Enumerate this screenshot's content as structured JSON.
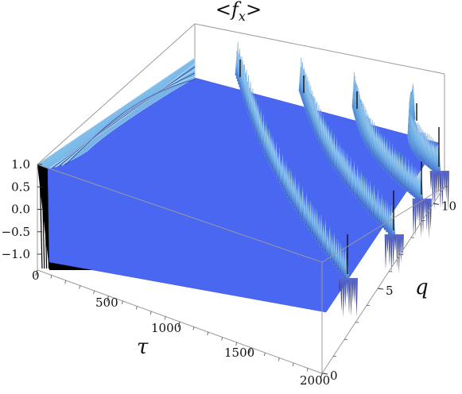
{
  "chart_data": {
    "type": "surface3d",
    "title": "<f_x>",
    "title_parts": {
      "open": "<",
      "var": "f",
      "sub": "x",
      "close": ">"
    },
    "xlabel": "τ",
    "ylabel": "q",
    "zlabel": "",
    "xlim": [
      0,
      2000
    ],
    "ylim": [
      0,
      11
    ],
    "zlim": [
      -1.0,
      1.0
    ],
    "x_ticks": [
      "0",
      "500",
      "1000",
      "1500",
      "2000"
    ],
    "y_ticks": [
      "0",
      "5",
      "10"
    ],
    "z_ticks": [
      "1.0",
      "0.5",
      "0.0",
      "−0.5",
      "−1.0"
    ],
    "colors": {
      "plateau": "#4a67f2",
      "ridge_light": "#cfe6fa",
      "ridge_mid": "#6aaee8",
      "ridge_dark": "#2a3a8a",
      "oscillation": "#000000"
    },
    "description_features": {
      "plateau_value": 0.0,
      "initial_value": 1.0,
      "resonance_q": [
        3,
        6,
        9,
        12
      ]
    }
  }
}
